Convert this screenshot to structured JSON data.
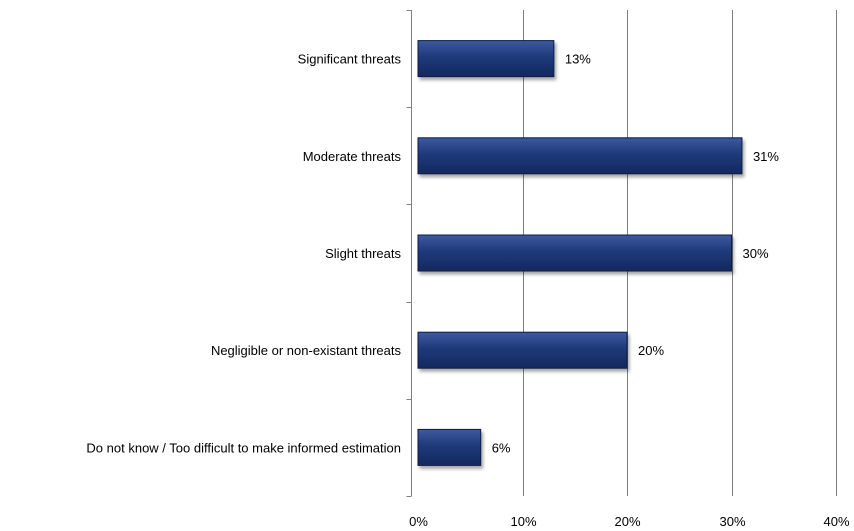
{
  "chart_data": {
    "type": "bar",
    "orientation": "horizontal",
    "categories": [
      "Significant threats",
      "Moderate threats",
      "Slight threats",
      "Negligible or non-existant threats",
      "Do not know / Too difficult to make informed estimation"
    ],
    "values": [
      13,
      31,
      30,
      20,
      6
    ],
    "data_labels": [
      "13%",
      "31%",
      "30%",
      "20%",
      "6%"
    ],
    "x_ticks": [
      "0%",
      "10%",
      "20%",
      "30%",
      "40%"
    ],
    "xlim": [
      0,
      40
    ],
    "grid": true,
    "legend": "none",
    "bar_color": "#1f3a7a"
  }
}
